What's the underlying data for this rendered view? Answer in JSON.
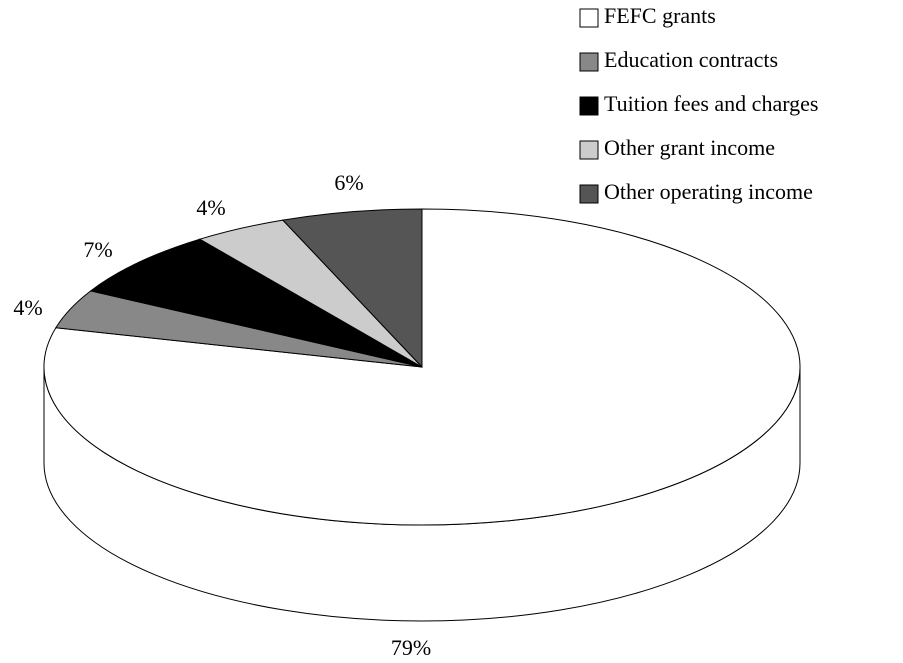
{
  "chart_data": {
    "type": "pie",
    "categories": [
      "FEFC grants",
      "Education contracts",
      "Tuition fees and charges",
      "Other grant income",
      "Other operating income"
    ],
    "values": [
      79,
      4,
      7,
      4,
      6
    ],
    "value_labels": [
      "79%",
      "4%",
      "7%",
      "4%",
      "6%"
    ],
    "colors": [
      "#ffffff",
      "#888888",
      "#000000",
      "#cccccc",
      "#555555"
    ],
    "legend": "top-right"
  }
}
